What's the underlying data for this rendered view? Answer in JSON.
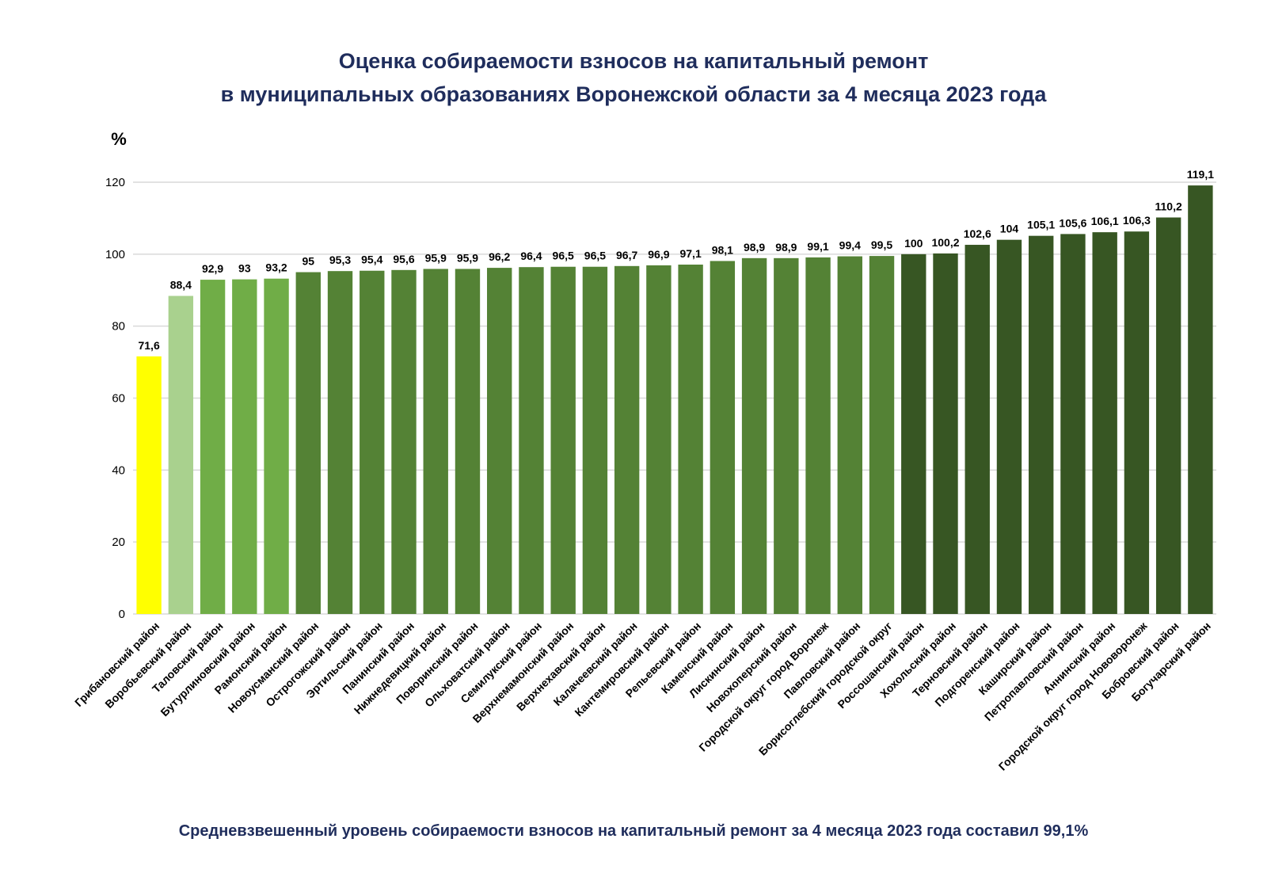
{
  "title_line1": "Оценка собираемости взносов на капитальный ремонт",
  "title_line2": "в муниципальных образованиях Воронежской области за 4 месяца 2023 года",
  "footer": "Средневзвешенный уровень собираемости взносов на капитальный ремонт за 4 месяца 2023 года составил 99,1%",
  "chart_data": {
    "type": "bar",
    "ylabel": "%",
    "ylim": [
      0,
      120
    ],
    "yticks": [
      0,
      20,
      40,
      60,
      80,
      100,
      120
    ],
    "grid": true,
    "categories": [
      "Грибановский район",
      "Воробьевский район",
      "Таловский район",
      "Бутурлиновский район",
      "Рамонский район",
      "Новоусманский район",
      "Острогожский район",
      "Эртильский район",
      "Панинский район",
      "Нижнедевицкий район",
      "Поворинский район",
      "Ольховатский район",
      "Семилукский район",
      "Верхнемамонский район",
      "Верхнехавский район",
      "Калачеевский район",
      "Кантемировский район",
      "Репьевский район",
      "Каменский район",
      "Лискинский район",
      "Новохоперский район",
      "Городской округ город Воронеж",
      "Павловский район",
      "Борисоглебский городской округ",
      "Россошанский район",
      "Хохольский район",
      "Терновский район",
      "Подгоренский район",
      "Каширский район",
      "Петропавловский район",
      "Аннинский район",
      "Городской округ город Нововоронеж",
      "Бобровский район",
      "Богучарский район"
    ],
    "values": [
      71.6,
      88.4,
      92.9,
      93,
      93.2,
      95,
      95.3,
      95.4,
      95.6,
      95.9,
      95.9,
      96.2,
      96.4,
      96.5,
      96.5,
      96.7,
      96.9,
      97.1,
      98.1,
      98.9,
      98.9,
      99.1,
      99.4,
      99.5,
      100,
      100.2,
      102.6,
      104,
      105.1,
      105.6,
      106.1,
      106.3,
      110.2,
      119.1
    ],
    "value_labels": [
      "71,6",
      "88,4",
      "92,9",
      "93",
      "93,2",
      "95",
      "95,3",
      "95,4",
      "95,6",
      "95,9",
      "95,9",
      "96,2",
      "96,4",
      "96,5",
      "96,5",
      "96,7",
      "96,9",
      "97,1",
      "98,1",
      "98,9",
      "98,9",
      "99,1",
      "99,4",
      "99,5",
      "100",
      "100,2",
      "102,6",
      "104",
      "105,1",
      "105,6",
      "106,1",
      "106,3",
      "110,2",
      "119,1"
    ],
    "colors": {
      "lowest": "#ffff00",
      "low": "#a9d18e",
      "below_95": "#70ad47",
      "95_to_100": "#548235",
      "100_plus": "#375623"
    }
  }
}
